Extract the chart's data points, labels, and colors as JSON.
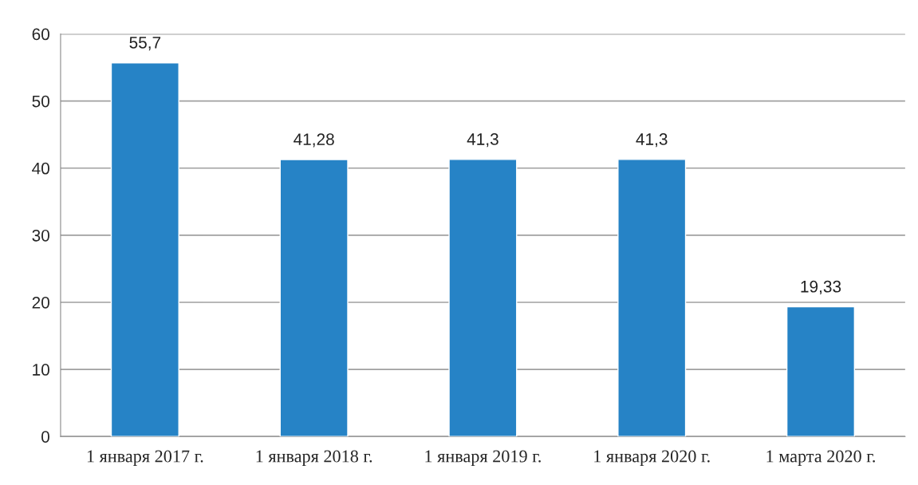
{
  "chart_data": {
    "type": "bar",
    "categories": [
      "1 января 2017 г.",
      "1 января 2018 г.",
      "1 января 2019 г.",
      "1 января 2020 г.",
      "1 марта 2020 г."
    ],
    "values": [
      55.7,
      41.28,
      41.3,
      41.3,
      19.33
    ],
    "value_labels": [
      "55,7",
      "41,28",
      "41,3",
      "41,3",
      "19,33"
    ],
    "color": "#2683c6",
    "ylim": [
      0,
      60
    ],
    "yticks": [
      0,
      10,
      20,
      30,
      40,
      50,
      60
    ],
    "grid": "y"
  }
}
